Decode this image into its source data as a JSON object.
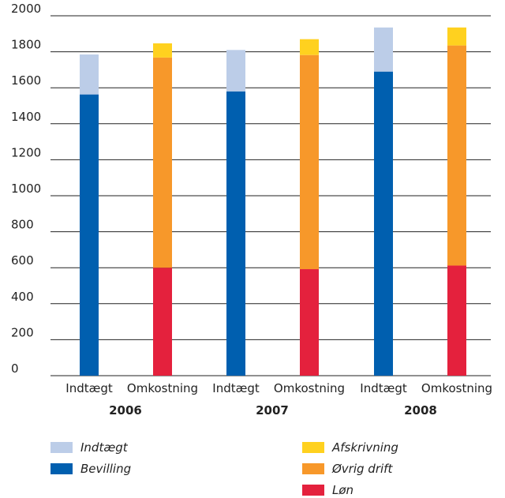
{
  "chart_data": {
    "type": "bar",
    "stacked": true,
    "ylim": [
      0,
      2000
    ],
    "yticks": [
      0,
      200,
      400,
      600,
      800,
      1000,
      1200,
      1400,
      1600,
      1800,
      2000
    ],
    "grid": "horizontal",
    "groups": [
      "2006",
      "2007",
      "2008"
    ],
    "categories": [
      "Indtægt",
      "Omkostning"
    ],
    "bars": [
      {
        "group": 0,
        "category": 0,
        "segments": [
          {
            "series": "Bevilling",
            "value": 1563
          },
          {
            "series": "Indtægt",
            "value": 222
          }
        ]
      },
      {
        "group": 0,
        "category": 1,
        "segments": [
          {
            "series": "Løn",
            "value": 600
          },
          {
            "series": "Øvrig drift",
            "value": 1168
          },
          {
            "series": "Afskrivning",
            "value": 79
          }
        ]
      },
      {
        "group": 1,
        "category": 0,
        "segments": [
          {
            "series": "Bevilling",
            "value": 1580
          },
          {
            "series": "Indtægt",
            "value": 230
          }
        ]
      },
      {
        "group": 1,
        "category": 1,
        "segments": [
          {
            "series": "Løn",
            "value": 592
          },
          {
            "series": "Øvrig drift",
            "value": 1190
          },
          {
            "series": "Afskrivning",
            "value": 88
          }
        ]
      },
      {
        "group": 2,
        "category": 0,
        "segments": [
          {
            "series": "Bevilling",
            "value": 1690
          },
          {
            "series": "Indtægt",
            "value": 245
          }
        ]
      },
      {
        "group": 2,
        "category": 1,
        "segments": [
          {
            "series": "Løn",
            "value": 612
          },
          {
            "series": "Øvrig drift",
            "value": 1223
          },
          {
            "series": "Afskrivning",
            "value": 100
          }
        ]
      }
    ],
    "series": [
      {
        "name": "Indtægt",
        "color": "#bccde8"
      },
      {
        "name": "Bevilling",
        "color": "#005faf"
      },
      {
        "name": "Afskrivning",
        "color": "#ffd11f"
      },
      {
        "name": "Øvrig drift",
        "color": "#f7982a"
      },
      {
        "name": "Løn",
        "color": "#e4213d"
      }
    ],
    "legend_position": "bottom"
  }
}
